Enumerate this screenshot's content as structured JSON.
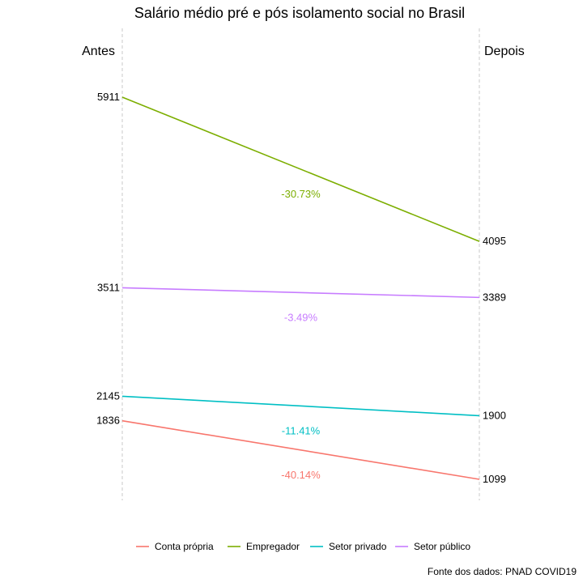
{
  "chart_data": {
    "type": "line",
    "title": "Salário médio pré e pós isolamento social no Brasil",
    "x": [
      "Antes",
      "Depois"
    ],
    "series": [
      {
        "name": "Conta própria",
        "values": [
          1836,
          1099
        ],
        "change_label": "-40.14%",
        "color": "#F8766D"
      },
      {
        "name": "Empregador",
        "values": [
          5911,
          4095
        ],
        "change_label": "-30.73%",
        "color": "#7CAE00"
      },
      {
        "name": "Setor privado",
        "values": [
          2145,
          1900
        ],
        "change_label": "-11.41%",
        "color": "#00BFC4"
      },
      {
        "name": "Setor público",
        "values": [
          3511,
          3389
        ],
        "change_label": "-3.49%",
        "color": "#C77CFF"
      }
    ],
    "grid": false,
    "legend_position": "bottom",
    "caption": "Fonte dos dados: PNAD COVID19"
  }
}
